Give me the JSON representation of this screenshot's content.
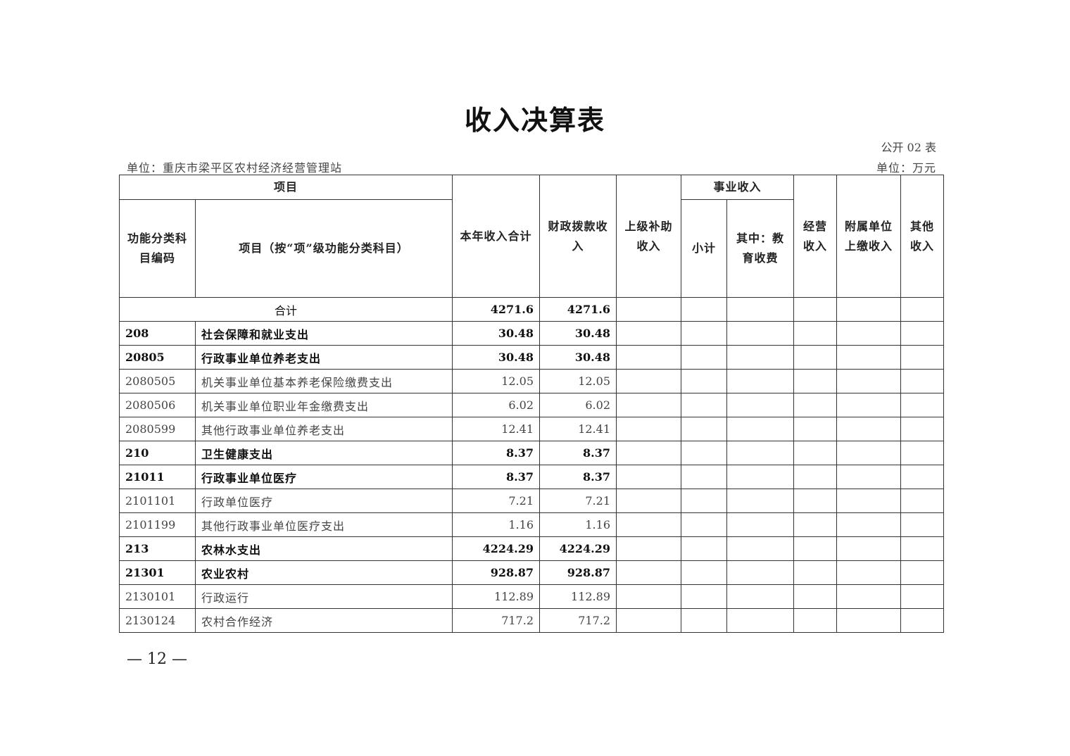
{
  "title": "收入决算表",
  "form_no": "公开 02 表",
  "unit_org": "单位：重庆市梁平区农村经济经营管理站",
  "unit_currency": "单位：万元",
  "headers": {
    "project": "项目",
    "code": "功能分类科目编码",
    "item": "项目（按“项”级功能分类科目）",
    "total": "本年收入合计",
    "fiscal": "财政拨款收入",
    "superior": "上级补助收入",
    "business": "事业收入",
    "subtotal": "小计",
    "edu": "其中：教育收费",
    "operating": "经营收入",
    "affiliated": "附属单位上缴收入",
    "other": "其他收入"
  },
  "total_row": {
    "label": "合计",
    "total": "4271.6",
    "fiscal": "4271.6"
  },
  "rows": [
    {
      "code": "208",
      "name": "社会保障和就业支出",
      "total": "30.48",
      "fiscal": "30.48",
      "bold": true
    },
    {
      "code": "20805",
      "name": "行政事业单位养老支出",
      "total": "30.48",
      "fiscal": "30.48",
      "bold": true
    },
    {
      "code": "2080505",
      "name": "机关事业单位基本养老保险缴费支出",
      "total": "12.05",
      "fiscal": "12.05",
      "bold": false
    },
    {
      "code": "2080506",
      "name": "机关事业单位职业年金缴费支出",
      "total": "6.02",
      "fiscal": "6.02",
      "bold": false
    },
    {
      "code": "2080599",
      "name": "其他行政事业单位养老支出",
      "total": "12.41",
      "fiscal": "12.41",
      "bold": false
    },
    {
      "code": "210",
      "name": "卫生健康支出",
      "total": "8.37",
      "fiscal": "8.37",
      "bold": true
    },
    {
      "code": "21011",
      "name": "行政事业单位医疗",
      "total": "8.37",
      "fiscal": "8.37",
      "bold": true
    },
    {
      "code": "2101101",
      "name": "行政单位医疗",
      "total": "7.21",
      "fiscal": "7.21",
      "bold": false
    },
    {
      "code": "2101199",
      "name": "其他行政事业单位医疗支出",
      "total": "1.16",
      "fiscal": "1.16",
      "bold": false
    },
    {
      "code": "213",
      "name": "农林水支出",
      "total": "4224.29",
      "fiscal": "4224.29",
      "bold": true
    },
    {
      "code": "21301",
      "name": "农业农村",
      "total": "928.87",
      "fiscal": "928.87",
      "bold": true
    },
    {
      "code": "2130101",
      "name": "行政运行",
      "total": "112.89",
      "fiscal": "112.89",
      "bold": false
    },
    {
      "code": "2130124",
      "name": "农村合作经济",
      "total": "717.2",
      "fiscal": "717.2",
      "bold": false
    }
  ],
  "page_number": "— 12 —"
}
